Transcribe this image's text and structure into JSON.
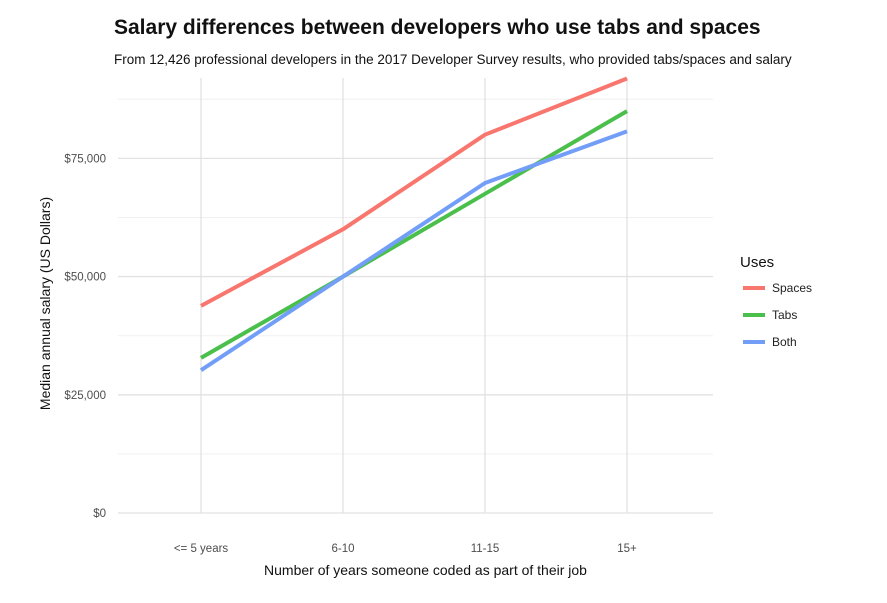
{
  "chart_data": {
    "type": "line",
    "title": "Salary differences between developers who use tabs and spaces",
    "subtitle": "From 12,426 professional developers in the 2017 Developer Survey results, who provided tabs/spaces and salary",
    "xlabel": "Number of years someone coded as part of their job",
    "ylabel": "Median annual salary (US Dollars)",
    "categories": [
      "<= 5 years",
      "6-10",
      "11-15",
      "15+"
    ],
    "ylim": [
      0,
      92000
    ],
    "yticks": [
      0,
      25000,
      50000,
      75000
    ],
    "ytick_labels": [
      "$0",
      "$25,000",
      "$50,000",
      "$75,000"
    ],
    "grid": true,
    "legend": {
      "title": "Uses",
      "position": "right"
    },
    "series": [
      {
        "name": "Spaces",
        "color": "#F8766D",
        "values": [
          43800,
          60000,
          80000,
          91900
        ]
      },
      {
        "name": "Tabs",
        "color": "#4BBF4B",
        "values": [
          32800,
          50000,
          67500,
          85000
        ]
      },
      {
        "name": "Both",
        "color": "#729EF8",
        "values": [
          30200,
          50000,
          69800,
          80700
        ]
      }
    ]
  }
}
